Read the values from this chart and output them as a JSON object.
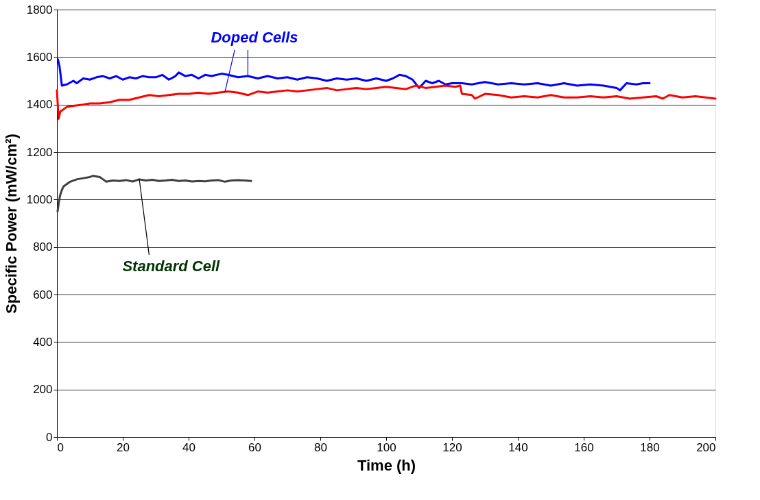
{
  "chart_data": {
    "type": "line",
    "xlabel": "Time (h)",
    "ylabel": "Specific Power (mW/cm²)",
    "xlim": [
      0,
      200
    ],
    "xticks": [
      0,
      20,
      40,
      60,
      80,
      100,
      120,
      140,
      160,
      180,
      200
    ],
    "ylim": [
      0,
      1800
    ],
    "yticks": [
      0,
      200,
      400,
      600,
      800,
      1000,
      1200,
      1400,
      1600,
      1800
    ],
    "grid": "y",
    "marker": "none",
    "line_style": "solid",
    "series": [
      {
        "color": "#0000ff",
        "x": [
          0.3,
          0.8,
          1.5,
          3,
          5,
          6,
          8,
          10,
          12,
          14,
          16,
          18,
          20,
          22,
          24,
          26,
          28,
          30,
          32,
          34,
          36,
          37,
          39,
          41,
          43,
          45,
          47,
          50,
          52,
          55,
          58,
          61,
          64,
          67,
          70,
          73,
          76,
          79,
          82,
          85,
          88,
          91,
          94,
          97,
          100,
          102,
          104,
          106,
          108,
          110,
          112,
          114,
          116,
          118,
          120,
          123,
          126,
          130,
          134,
          138,
          142,
          146,
          150,
          154,
          158,
          162,
          166,
          170,
          171,
          173,
          176,
          178,
          180
        ],
        "values": [
          1590,
          1560,
          1480,
          1485,
          1500,
          1490,
          1510,
          1505,
          1515,
          1520,
          1510,
          1520,
          1505,
          1515,
          1510,
          1520,
          1515,
          1515,
          1525,
          1505,
          1520,
          1535,
          1520,
          1525,
          1510,
          1525,
          1520,
          1530,
          1525,
          1515,
          1520,
          1510,
          1520,
          1510,
          1515,
          1505,
          1515,
          1510,
          1500,
          1510,
          1505,
          1510,
          1500,
          1510,
          1500,
          1510,
          1525,
          1520,
          1505,
          1470,
          1500,
          1490,
          1500,
          1485,
          1490,
          1490,
          1485,
          1495,
          1485,
          1490,
          1485,
          1490,
          1480,
          1490,
          1480,
          1485,
          1480,
          1470,
          1460,
          1490,
          1485,
          1490,
          1490
        ]
      },
      {
        "color": "#ff0000",
        "x": [
          0,
          0.5,
          1,
          2,
          3,
          5,
          8,
          10,
          13,
          16,
          19,
          22,
          25,
          28,
          31,
          34,
          37,
          40,
          43,
          46,
          49,
          52,
          55,
          58,
          61,
          64,
          67,
          70,
          73,
          76,
          79,
          82,
          85,
          88,
          91,
          94,
          97,
          100,
          103,
          106,
          109,
          112,
          115,
          118,
          121,
          122.5,
          123,
          126,
          127,
          130,
          134,
          138,
          142,
          146,
          150,
          154,
          158,
          162,
          166,
          170,
          174,
          178,
          182,
          184,
          186,
          190,
          194,
          197,
          200
        ],
        "values": [
          1460,
          1340,
          1370,
          1380,
          1390,
          1395,
          1400,
          1405,
          1405,
          1410,
          1420,
          1420,
          1430,
          1440,
          1435,
          1440,
          1445,
          1445,
          1450,
          1445,
          1450,
          1455,
          1450,
          1440,
          1455,
          1450,
          1455,
          1460,
          1455,
          1460,
          1465,
          1470,
          1460,
          1465,
          1470,
          1465,
          1470,
          1475,
          1470,
          1465,
          1480,
          1470,
          1475,
          1480,
          1475,
          1480,
          1445,
          1440,
          1425,
          1445,
          1440,
          1430,
          1435,
          1430,
          1440,
          1430,
          1430,
          1435,
          1430,
          1435,
          1425,
          1430,
          1435,
          1425,
          1440,
          1430,
          1435,
          1430,
          1425
        ]
      },
      {
        "color": "#404040",
        "x": [
          0.2,
          0.6,
          1,
          1.5,
          2,
          3,
          4,
          5,
          6,
          8,
          10,
          11,
          13,
          14,
          15,
          17,
          19,
          21,
          23,
          25,
          27,
          29,
          31,
          33,
          35,
          37,
          39,
          41,
          43,
          45,
          47,
          49,
          51,
          53,
          55,
          57,
          59
        ],
        "values": [
          950,
          990,
          1020,
          1040,
          1055,
          1065,
          1075,
          1080,
          1085,
          1090,
          1095,
          1100,
          1095,
          1085,
          1075,
          1080,
          1078,
          1082,
          1076,
          1085,
          1080,
          1083,
          1078,
          1080,
          1083,
          1078,
          1080,
          1076,
          1078,
          1077,
          1080,
          1082,
          1075,
          1080,
          1082,
          1080,
          1078
        ]
      }
    ],
    "annotations": [
      {
        "text": "Doped Cells",
        "x": 51,
        "y": 1452
      },
      {
        "text": "Standard Cell",
        "x": 25,
        "y": 1088
      }
    ]
  }
}
